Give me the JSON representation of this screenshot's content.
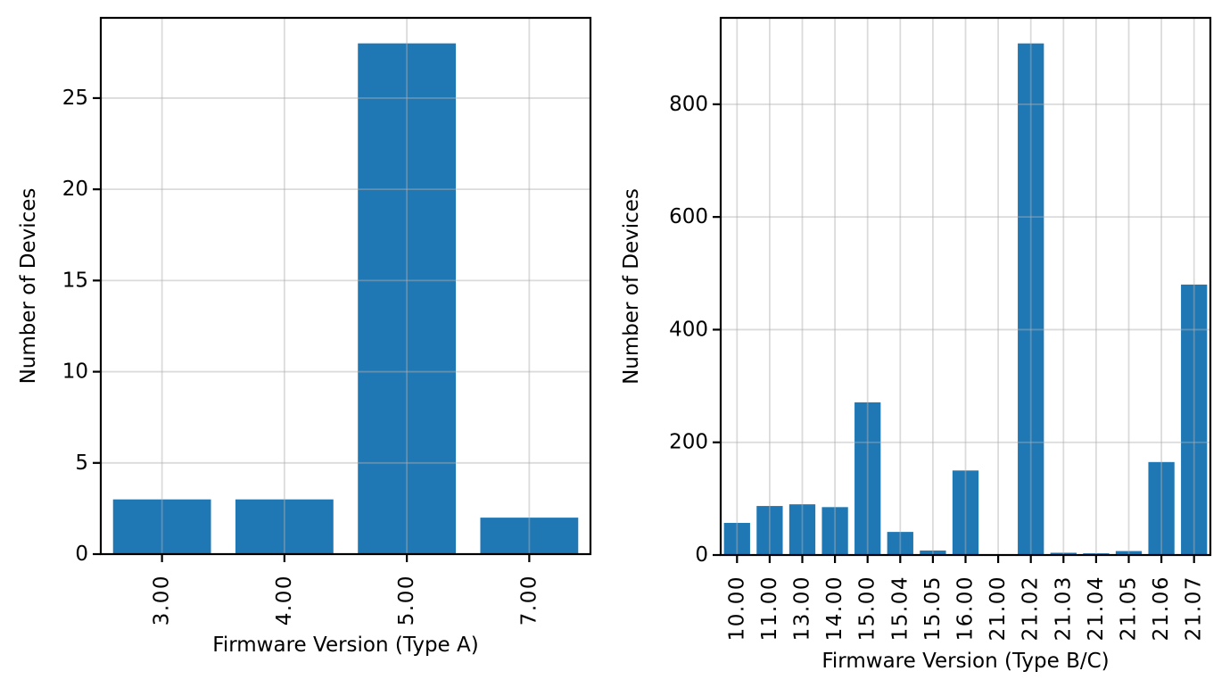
{
  "figure": {
    "background": "#ffffff",
    "text_color": "#000000",
    "spine_color": "#000000",
    "grid_color": "#b0b0b0",
    "grid_opacity": 0.45
  },
  "chart_data": [
    {
      "type": "bar",
      "title": "",
      "xlabel": "Firmware Version (Type A)",
      "ylabel": "Number of Devices",
      "categories": [
        "3.00",
        "4.00",
        "5.00",
        "7.00"
      ],
      "values": [
        3,
        3,
        28,
        2
      ],
      "yticks": [
        0,
        5,
        10,
        15,
        20,
        25
      ],
      "ylim": [
        0,
        29.4
      ],
      "bar_color": "#1f77b4",
      "bar_width_fraction": 0.8,
      "grid": true,
      "xtick_rotation": 90,
      "legend": "none"
    },
    {
      "type": "bar",
      "title": "",
      "xlabel": "Firmware Version (Type B/C)",
      "ylabel": "Number of Devices",
      "categories": [
        "10.00",
        "11.00",
        "13.00",
        "14.00",
        "15.00",
        "15.04",
        "15.05",
        "16.00",
        "21.00",
        "21.02",
        "21.03",
        "21.04",
        "21.05",
        "21.06",
        "21.07"
      ],
      "values": [
        57,
        87,
        90,
        85,
        271,
        41,
        8,
        150,
        1,
        908,
        4,
        3,
        7,
        165,
        480
      ],
      "yticks": [
        0,
        200,
        400,
        600,
        800
      ],
      "ylim": [
        0,
        953.4
      ],
      "bar_color": "#1f77b4",
      "bar_width_fraction": 0.8,
      "grid": true,
      "xtick_rotation": 90,
      "legend": "none"
    }
  ]
}
